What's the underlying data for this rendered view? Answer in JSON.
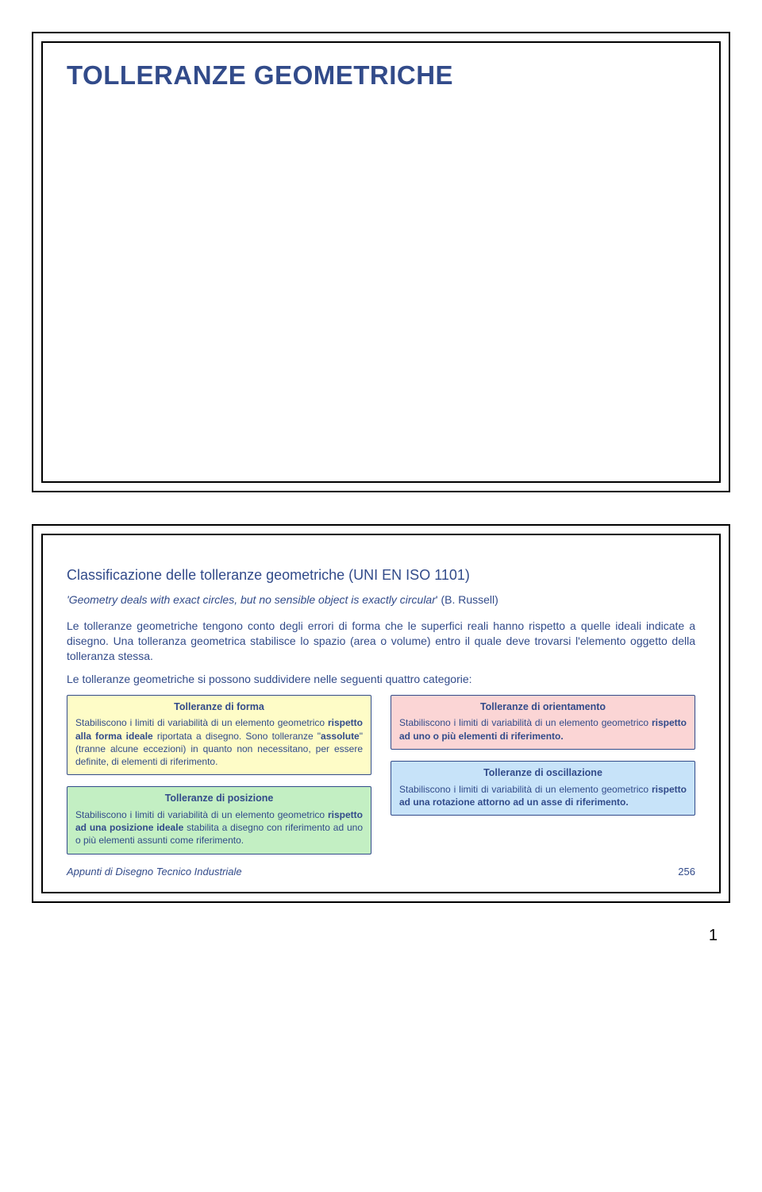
{
  "colors": {
    "primary_text": "#324b8a",
    "shadow": "#bcbccc",
    "border": "#000000",
    "box_yellow": "#fefcc7",
    "box_green": "#c3efc3",
    "box_pink": "#fbd5d5",
    "box_blue": "#c7e3f9",
    "box_border": "#324b8a"
  },
  "slide1": {
    "title": "TOLLERANZE GEOMETRICHE"
  },
  "slide2": {
    "subtitle": "Classificazione delle tolleranze geometriche (UNI EN ISO 1101)",
    "quote_prefix": "'",
    "quote_italic": "Geometry deals with exact circles, but no sensible object is exactly circular",
    "quote_suffix": "' (B. Russell)",
    "para1": "Le tolleranze geometriche tengono conto degli errori di forma che le superfici reali hanno rispetto a quelle ideali indicate a disegno. Una tolleranza geometrica stabilisce lo spazio (area o volume) entro il quale deve trovarsi l'elemento oggetto della tolleranza stessa.",
    "para2": "Le tolleranze geometriche si possono suddividere nelle seguenti quattro categorie:",
    "forma": {
      "title": "Tolleranze di forma",
      "pre": "Stabiliscono i limiti di variabilità di un elemento geometrico ",
      "b1": "rispetto alla forma ideale",
      "mid1": " riportata a disegno. Sono tolleranze \"",
      "b2": "assolute",
      "post": "\" (tranne alcune eccezioni) in quanto non necessitano, per essere definite, di elementi di riferimento."
    },
    "posizione": {
      "title": "Tolleranze di posizione",
      "pre": "Stabiliscono i limiti di variabilità di un elemento geometrico ",
      "b1": "rispetto ad una posizione ideale",
      "post": " stabilita a disegno con riferimento ad uno o più elementi assunti come riferimento."
    },
    "orientamento": {
      "title": "Tolleranze di orientamento",
      "pre": "Stabiliscono i limiti di variabilità di un elemento geometrico ",
      "b1": "rispetto ad uno o più elementi di riferimento.",
      "post": ""
    },
    "oscillazione": {
      "title": "Tolleranze di oscillazione",
      "pre": "Stabiliscono i limiti di variabilità di un elemento geometrico ",
      "b1": "rispetto ad una rotazione attorno ad un asse di riferimento.",
      "post": ""
    },
    "footer_text": "Appunti di Disegno Tecnico Industriale",
    "footer_page": "256"
  },
  "page_number": "1"
}
